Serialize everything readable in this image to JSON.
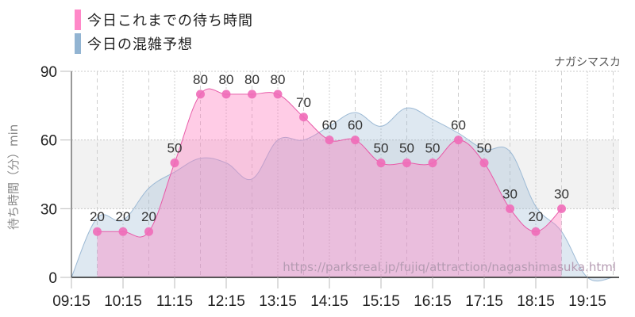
{
  "legend": {
    "items": [
      {
        "label": "今日これまでの待ち時間",
        "color": "#ff88c8"
      },
      {
        "label": "今日の混雑予想",
        "color": "#92b4d2"
      }
    ]
  },
  "attraction_name": "ナガシマスカ",
  "y_axis_label": "待ち時間（分）min",
  "watermark": "https://parksreal.jp/fujiq/attraction/nagashimasuka.html",
  "chart_data": {
    "type": "area",
    "title": "",
    "xlabel": "",
    "ylabel": "待ち時間（分）min",
    "ylim": [
      0,
      90
    ],
    "yticks": [
      0,
      30,
      60,
      90
    ],
    "xticks": [
      "09:15",
      "10:15",
      "11:15",
      "12:15",
      "13:15",
      "14:15",
      "15:15",
      "16:15",
      "17:15",
      "18:15",
      "19:15"
    ],
    "grid": true,
    "legend_position": "top-left",
    "series": [
      {
        "name": "今日これまでの待ち時間",
        "type": "line+area+markers",
        "color": "#ff88c8",
        "x": [
          "09:45",
          "10:15",
          "10:45",
          "11:15",
          "11:45",
          "12:15",
          "12:45",
          "13:15",
          "13:45",
          "14:15",
          "14:45",
          "15:15",
          "15:45",
          "16:15",
          "16:45",
          "17:15",
          "17:45",
          "18:15",
          "18:45"
        ],
        "values": [
          20,
          20,
          20,
          50,
          80,
          80,
          80,
          80,
          70,
          60,
          60,
          50,
          50,
          50,
          60,
          50,
          30,
          20,
          30
        ]
      },
      {
        "name": "今日の混雑予想",
        "type": "area",
        "color": "#92b4d2",
        "x": [
          "09:15",
          "09:45",
          "10:15",
          "10:45",
          "11:15",
          "11:45",
          "12:15",
          "12:45",
          "13:15",
          "13:45",
          "14:15",
          "14:45",
          "15:15",
          "15:45",
          "16:15",
          "16:45",
          "17:15",
          "17:45",
          "18:15",
          "18:45",
          "19:15",
          "19:45"
        ],
        "values": [
          0,
          26,
          25,
          39,
          46,
          52,
          50,
          43,
          60,
          60,
          66,
          72,
          66,
          74,
          69,
          63,
          56,
          55,
          31,
          20,
          0,
          0
        ]
      }
    ]
  }
}
